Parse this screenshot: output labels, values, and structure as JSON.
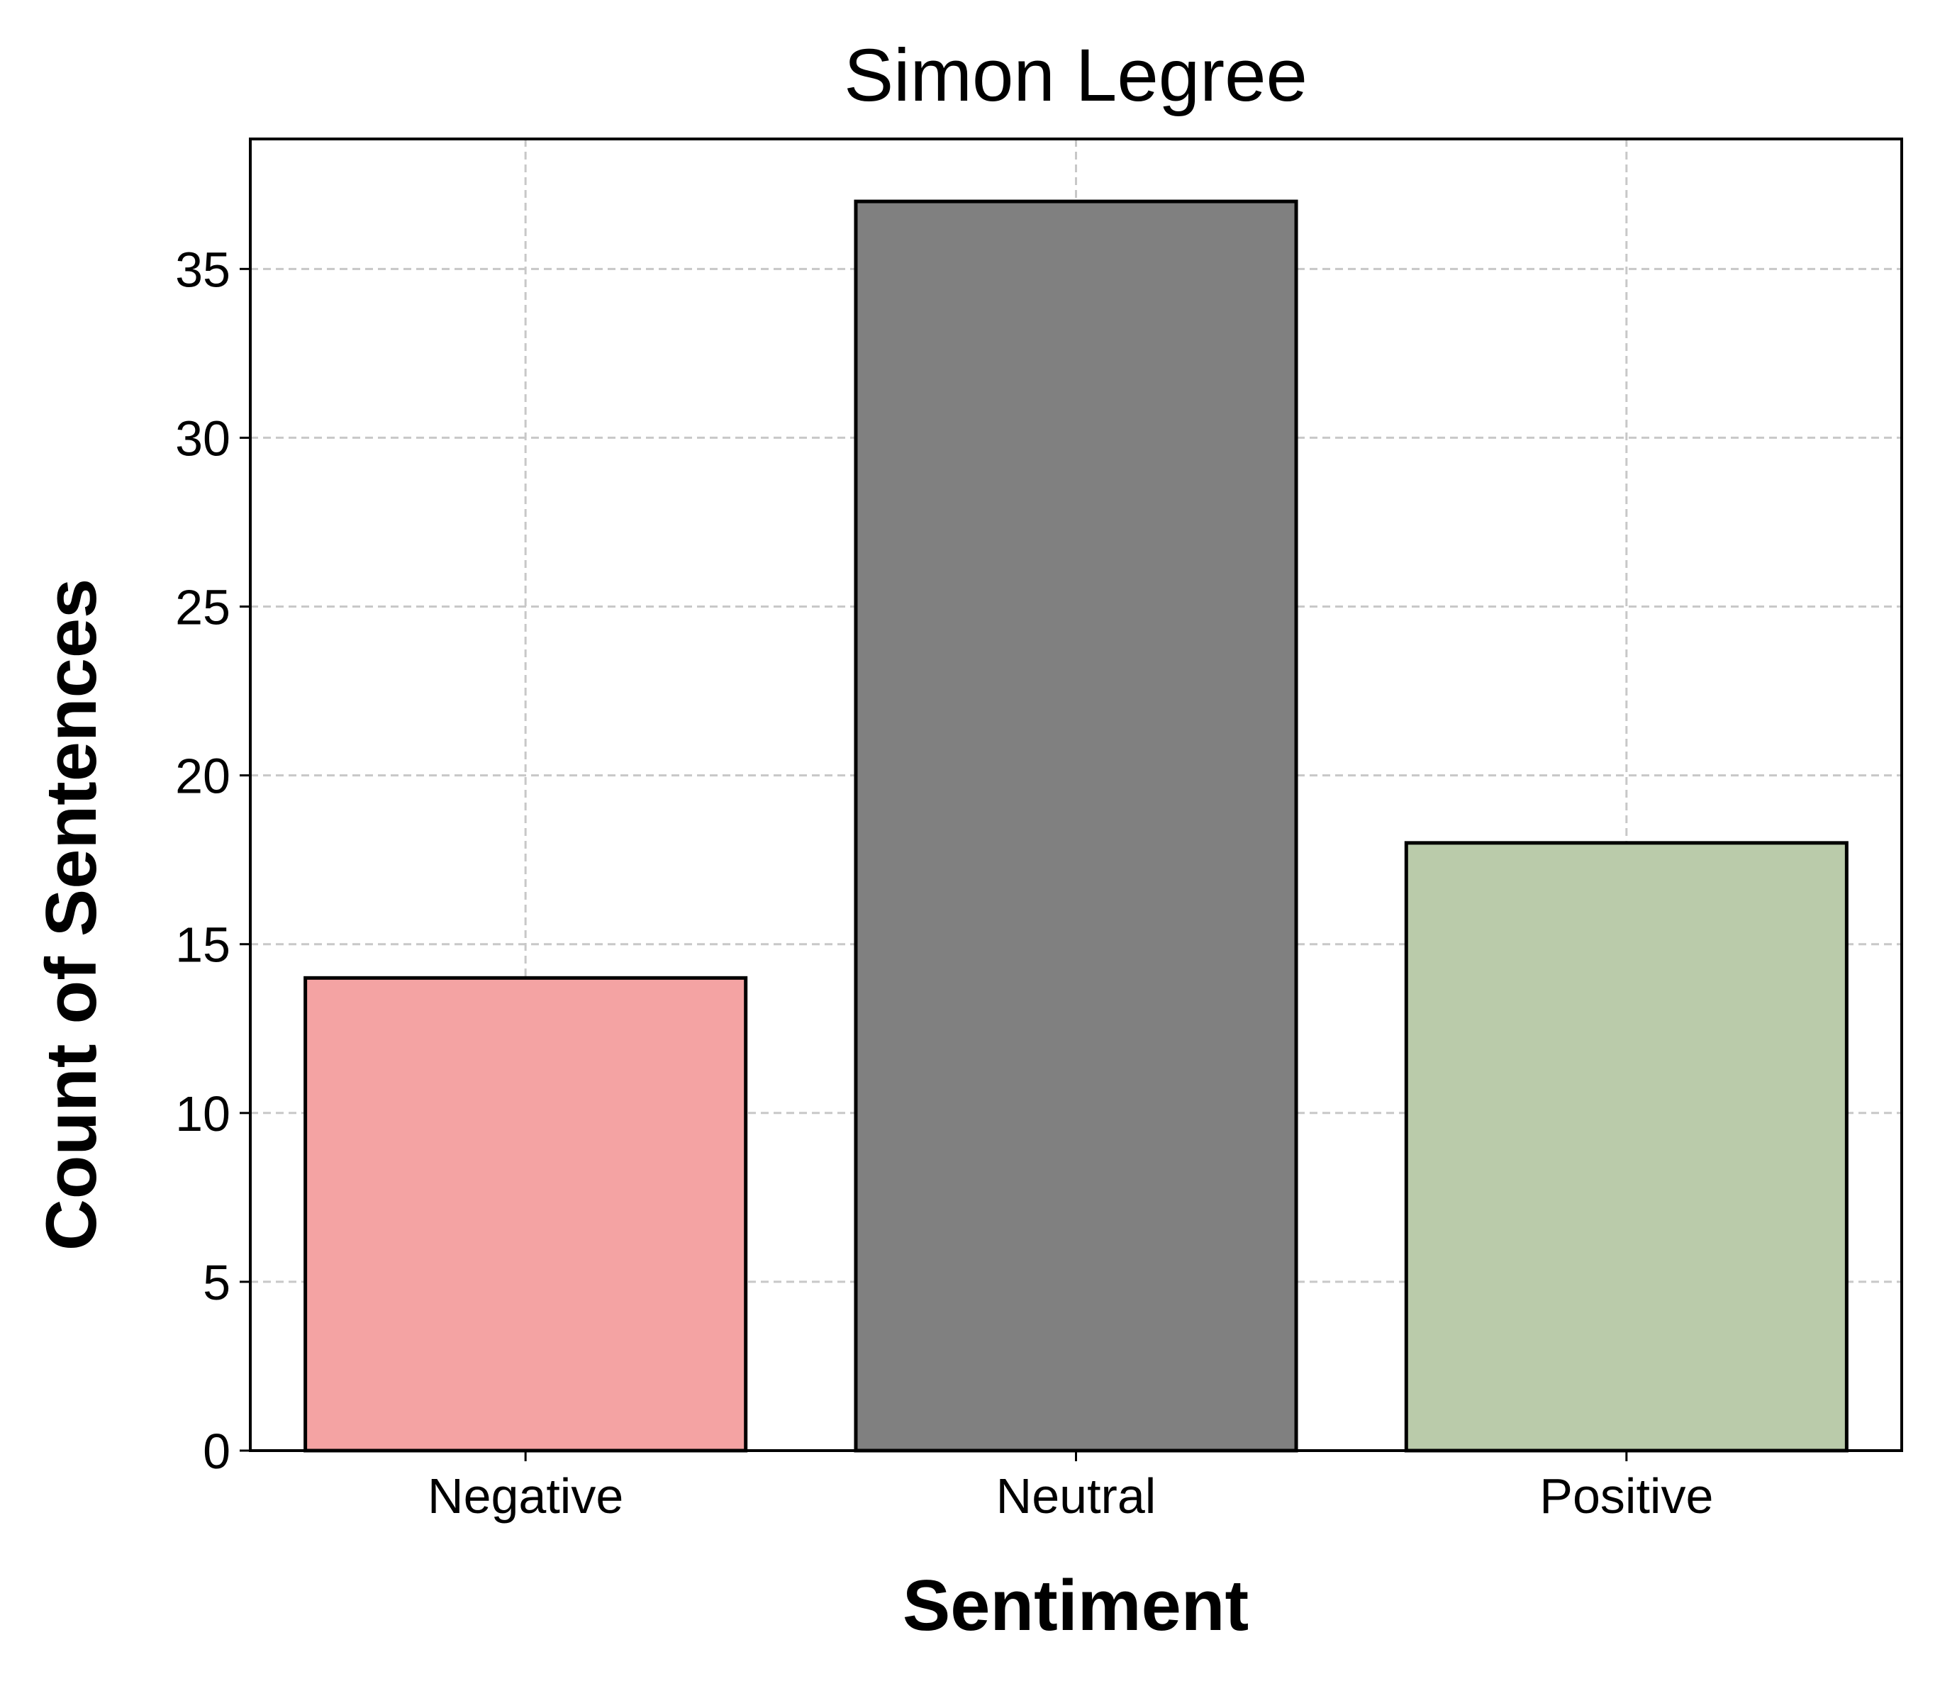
{
  "chart_data": {
    "type": "bar",
    "title": "Simon Legree",
    "xlabel": "Sentiment",
    "ylabel": "Count of Sentences",
    "categories": [
      "Negative",
      "Neutral",
      "Positive"
    ],
    "values": [
      14,
      37,
      18
    ],
    "colors": [
      "#f4a3a3",
      "#808080",
      "#bacbaa"
    ],
    "edge_color": "#000000",
    "ylim": [
      0,
      38.85
    ],
    "yticks": [
      0,
      5,
      10,
      15,
      20,
      25,
      30,
      35
    ],
    "grid": true,
    "grid_style": "dashed",
    "grid_color": "#c8c8c8",
    "legend": false
  }
}
